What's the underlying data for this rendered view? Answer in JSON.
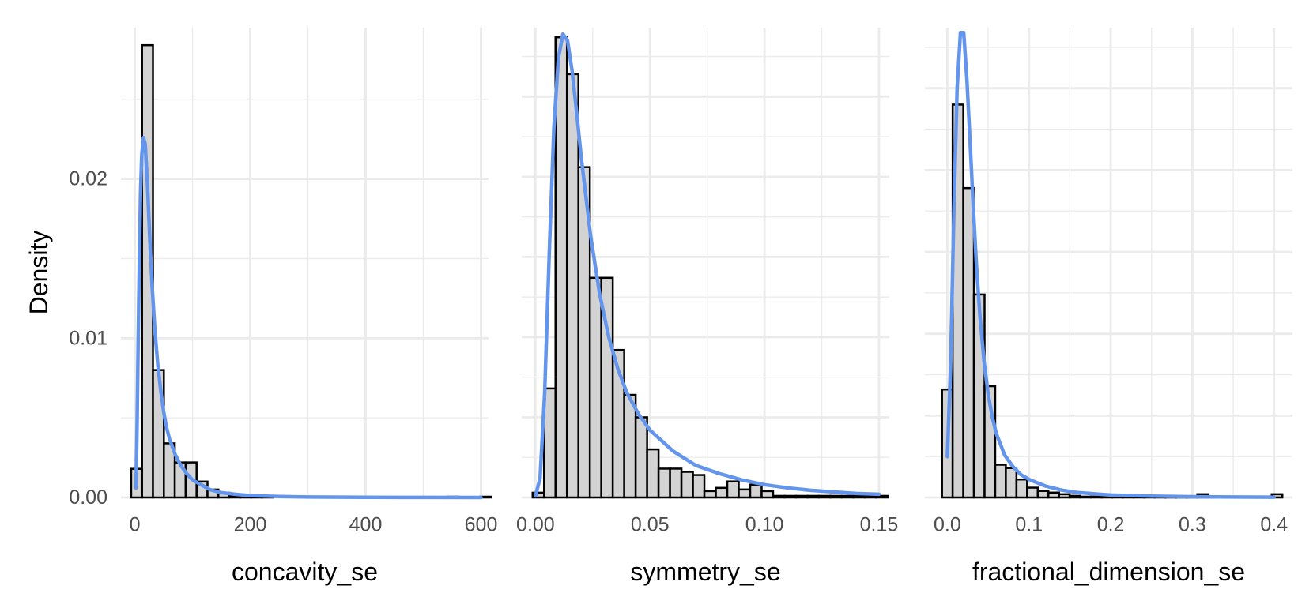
{
  "chart_data": [
    {
      "type": "bar",
      "xlabel": "concavity_se",
      "ylabel": "Density",
      "x_ticks": [
        0,
        200,
        400,
        600
      ],
      "x_tick_labels": [
        "0",
        "200",
        "400",
        "600"
      ],
      "y_ticks": [
        0,
        0.01,
        0.02
      ],
      "y_tick_labels": [
        "0.00",
        "0.01",
        "0.02"
      ],
      "xlim": [
        -24,
        613
      ],
      "ylim": [
        0,
        0.0295
      ],
      "grid": true,
      "bins": {
        "x": [
          -6.3,
          12.6,
          31.5,
          50.4,
          69.3,
          88.2,
          107.1,
          126.0,
          144.9,
          163.8,
          182.7,
          201.6,
          220.5,
          239.4,
          258.3,
          277.2,
          296.1,
          315.0,
          333.9,
          352.8,
          371.7,
          390.6,
          409.5,
          428.4,
          447.3,
          466.2,
          485.1,
          504.0,
          522.9,
          541.8,
          560.7,
          579.6,
          598.5
        ],
        "density": [
          0.0018,
          0.0284,
          0.008,
          0.0034,
          0.0022,
          0.0022,
          0.001,
          0.0005,
          0.0003,
          0.0001,
          0.0001,
          0.0001,
          0.0001,
          0,
          0,
          0,
          0,
          0,
          0,
          0,
          0,
          0,
          0,
          0,
          0,
          0,
          0,
          0,
          0,
          5e-05,
          0,
          0,
          5e-05
        ]
      },
      "series": [
        {
          "name": "density",
          "x": [
            2,
            4,
            6,
            8,
            10,
            12,
            15,
            18,
            22,
            26,
            30,
            35,
            40,
            45,
            50,
            55,
            60,
            70,
            80,
            90,
            100,
            115,
            130,
            150,
            175,
            200,
            250,
            300,
            400,
            500,
            600
          ],
          "y": [
            0.0006,
            0.0045,
            0.0102,
            0.0153,
            0.0192,
            0.0215,
            0.0226,
            0.0222,
            0.0196,
            0.0162,
            0.0133,
            0.0104,
            0.0083,
            0.0067,
            0.0054,
            0.0044,
            0.0037,
            0.0027,
            0.002,
            0.0015,
            0.0011,
            0.0008,
            0.0005,
            0.0003,
            0.0002,
            0.00012,
            6e-05,
            3e-05,
            1e-05,
            5e-06,
            2e-06
          ]
        }
      ]
    },
    {
      "type": "bar",
      "xlabel": "symmetry_se",
      "x_ticks": [
        0,
        0.05,
        0.1,
        0.15
      ],
      "x_tick_labels": [
        "0.00",
        "0.05",
        "0.10",
        "0.15"
      ],
      "xlim": [
        -0.006,
        0.1545
      ],
      "ylim": [
        0,
        29.3
      ],
      "y_gridlines": [
        0,
        5,
        10,
        15,
        20,
        25
      ],
      "y_minor_gridlines": [
        2.5,
        7.5,
        12.5,
        17.5,
        22.5,
        27.5
      ],
      "grid": true,
      "bins": {
        "x": [
          -0.00125,
          0.00375,
          0.00875,
          0.01375,
          0.01875,
          0.02375,
          0.02875,
          0.03375,
          0.03875,
          0.04375,
          0.04875,
          0.05375,
          0.05875,
          0.06375,
          0.06875,
          0.07375,
          0.07875,
          0.08375,
          0.08875,
          0.09375,
          0.09875,
          0.10375,
          0.10875,
          0.11375,
          0.11875,
          0.12375,
          0.12875,
          0.13375,
          0.13875,
          0.14375,
          0.14875
        ],
        "density": [
          0.3,
          6.8,
          28.7,
          26.4,
          20.6,
          13.7,
          13.7,
          9.2,
          6.4,
          5.0,
          3.0,
          1.8,
          1.8,
          1.6,
          1.4,
          0.4,
          0.6,
          1.0,
          0.5,
          0.8,
          0.4,
          0.1,
          0.1,
          0.1,
          0.1,
          0.1,
          0.1,
          0.1,
          0.1,
          0.1,
          0.1
        ]
      },
      "series": [
        {
          "name": "density",
          "x": [
            0,
            0.002,
            0.004,
            0.006,
            0.008,
            0.01,
            0.012,
            0.014,
            0.016,
            0.018,
            0.02,
            0.024,
            0.028,
            0.032,
            0.036,
            0.04,
            0.045,
            0.05,
            0.06,
            0.07,
            0.08,
            0.09,
            0.1,
            0.11,
            0.12,
            0.13,
            0.14,
            0.15
          ],
          "y": [
            0.1,
            1.2,
            6.5,
            15.2,
            23.0,
            27.4,
            28.9,
            28.5,
            26.6,
            24.0,
            21.2,
            16.4,
            12.7,
            10.0,
            8.0,
            6.5,
            5.2,
            4.2,
            2.9,
            2.0,
            1.5,
            1.1,
            0.8,
            0.6,
            0.45,
            0.35,
            0.25,
            0.2
          ]
        }
      ]
    },
    {
      "type": "bar",
      "xlabel": "fractional_dimension_se",
      "x_ticks": [
        0,
        0.1,
        0.2,
        0.3,
        0.4
      ],
      "x_tick_labels": [
        "0.0",
        "0.1",
        "0.2",
        "0.3",
        "0.4"
      ],
      "xlim": [
        -0.0275,
        0.4225
      ],
      "ylim": [
        0,
        28.7
      ],
      "y_gridlines": [
        0,
        5,
        10,
        15,
        20,
        25
      ],
      "y_minor_gridlines": [
        2.5,
        7.5,
        12.5,
        17.5,
        22.5,
        27.5
      ],
      "grid": true,
      "bins": {
        "x": [
          -0.00651,
          0.00651,
          0.01953,
          0.03255,
          0.04557,
          0.05859,
          0.07161,
          0.08463,
          0.09765,
          0.11067,
          0.12369,
          0.13671,
          0.14973,
          0.16275,
          0.17577,
          0.18879,
          0.20181,
          0.21483,
          0.22785,
          0.24087,
          0.25389,
          0.26691,
          0.27993,
          0.29295,
          0.30597,
          0.31899,
          0.33201,
          0.34503,
          0.35805,
          0.37107,
          0.38409,
          0.39711
        ],
        "density": [
          6.6,
          24.0,
          18.9,
          12.4,
          6.8,
          2.0,
          1.8,
          1.1,
          0.6,
          0.4,
          0.3,
          0.2,
          0.1,
          0.05,
          0.05,
          0.05,
          0.05,
          0.05,
          0.05,
          0.05,
          0.05,
          0.05,
          0.05,
          0.05,
          0.2,
          0.05,
          0.05,
          0.05,
          0.05,
          0.05,
          0.05,
          0.2
        ]
      },
      "series": [
        {
          "name": "density",
          "x": [
            0,
            0.004,
            0.008,
            0.012,
            0.016,
            0.02,
            0.024,
            0.028,
            0.032,
            0.036,
            0.04,
            0.045,
            0.05,
            0.055,
            0.06,
            0.07,
            0.08,
            0.09,
            0.1,
            0.12,
            0.14,
            0.16,
            0.2,
            0.25,
            0.3,
            0.35,
            0.4
          ],
          "y": [
            2.5,
            8.0,
            17.5,
            25.0,
            28.4,
            28.4,
            25.5,
            21.6,
            17.5,
            13.9,
            11.0,
            8.3,
            6.3,
            4.9,
            3.9,
            2.6,
            1.9,
            1.4,
            1.1,
            0.7,
            0.45,
            0.3,
            0.15,
            0.08,
            0.05,
            0.03,
            0.02
          ]
        }
      ]
    }
  ]
}
